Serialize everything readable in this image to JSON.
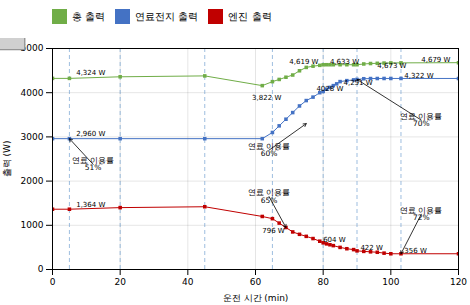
{
  "chart_data": {
    "type": "line",
    "xlabel": "운전 시간 (min)",
    "ylabel": "출력 (W)",
    "xlim": [
      0,
      120
    ],
    "ylim": [
      0,
      5000
    ],
    "xticks": [
      0,
      20,
      40,
      60,
      80,
      100,
      120
    ],
    "yticks": [
      0,
      1000,
      2000,
      3000,
      4000,
      5000
    ],
    "grid": true,
    "legend": "top",
    "series": [
      {
        "name": "총 출력",
        "color": "#70AD47",
        "marker": "square",
        "x": [
          0,
          5,
          20,
          45,
          62,
          65,
          67,
          69,
          71,
          73,
          75,
          77,
          79,
          80,
          81,
          82,
          83,
          85,
          87,
          89,
          90,
          92,
          94,
          96,
          98,
          100,
          103,
          120
        ],
        "values": [
          4324,
          4324,
          4360,
          4380,
          4160,
          4250,
          4300,
          4350,
          4400,
          4496,
          4572,
          4600,
          4619,
          4632,
          4633,
          4633,
          4633,
          4633,
          4633,
          4633,
          4633,
          4650,
          4660,
          4665,
          4670,
          4673,
          4675,
          4679
        ]
      },
      {
        "name": "연료전지 출력",
        "color": "#4472C4",
        "marker": "square",
        "x": [
          0,
          5,
          20,
          45,
          62,
          65,
          67,
          69,
          71,
          73,
          75,
          77,
          79,
          80,
          81,
          82,
          83,
          84,
          85,
          87,
          89,
          90,
          92,
          94,
          96,
          98,
          100,
          103,
          120
        ],
        "values": [
          2960,
          2960,
          2960,
          2960,
          2960,
          3100,
          3250,
          3400,
          3550,
          3700,
          3822,
          3900,
          4000,
          4028,
          4080,
          4120,
          4160,
          4200,
          4251,
          4273,
          4290,
          4300,
          4316,
          4320,
          4321,
          4322,
          4322,
          4322,
          4322
        ]
      },
      {
        "name": "엔진 출력",
        "color": "#C00000",
        "marker": "square",
        "x": [
          0,
          5,
          20,
          45,
          62,
          65,
          67,
          69,
          71,
          73,
          75,
          77,
          79,
          80,
          81,
          82,
          83,
          85,
          87,
          89,
          90,
          92,
          94,
          96,
          98,
          100,
          103,
          120
        ],
        "values": [
          1364,
          1364,
          1400,
          1420,
          1200,
          1150,
          1050,
          950,
          850,
          796,
          750,
          700,
          640,
          604,
          580,
          560,
          540,
          500,
          470,
          450,
          422,
          410,
          400,
          390,
          370,
          356,
          356,
          356
        ]
      }
    ],
    "vlines": [
      5,
      20,
      45,
      65,
      80,
      90,
      103
    ],
    "annotations": [
      {
        "text": "4,324 W",
        "x": 7,
        "y": 4400
      },
      {
        "text": "2,960 W",
        "x": 7,
        "y": 3020
      },
      {
        "text": "1,364 W",
        "x": 7,
        "y": 1410
      },
      {
        "text": "3,822 W",
        "x": 59,
        "y": 3830
      },
      {
        "text": "4028 W",
        "x": 78,
        "y": 4040
      },
      {
        "text": "796 W",
        "x": 62,
        "y": 820
      },
      {
        "text": "4,619 W",
        "x": 70,
        "y": 4640
      },
      {
        "text": "4,633 W",
        "x": 82,
        "y": 4650
      },
      {
        "text": "604 W",
        "x": 80,
        "y": 615
      },
      {
        "text": "4,673 W",
        "x": 96,
        "y": 4550
      },
      {
        "text": "4,251 W",
        "x": 86,
        "y": 4170
      },
      {
        "text": "4,322 W",
        "x": 104,
        "y": 4340
      },
      {
        "text": "422 W",
        "x": 91,
        "y": 440
      },
      {
        "text": "4,679 W",
        "x": 109,
        "y": 4690
      },
      {
        "text": "356 W",
        "x": 104,
        "y": 380
      },
      {
        "text": "연료 이용률\n51%",
        "x": 12,
        "y": 2380,
        "arrow_to": [
          5,
          2960
        ]
      },
      {
        "text": "연료 이용률\n60%",
        "x": 64,
        "y": 2700,
        "arrow_to": [
          75,
          3300
        ]
      },
      {
        "text": "연료 이용률\n65%",
        "x": 64,
        "y": 1650,
        "arrow_to": [
          69,
          950
        ]
      },
      {
        "text": "연료 이용률\n70%",
        "x": 109,
        "y": 3380,
        "arrow_to": [
          90,
          4300
        ]
      },
      {
        "text": "연료 이용률\n72%",
        "x": 109,
        "y": 1250,
        "arrow_to": [
          103,
          356
        ]
      }
    ]
  }
}
